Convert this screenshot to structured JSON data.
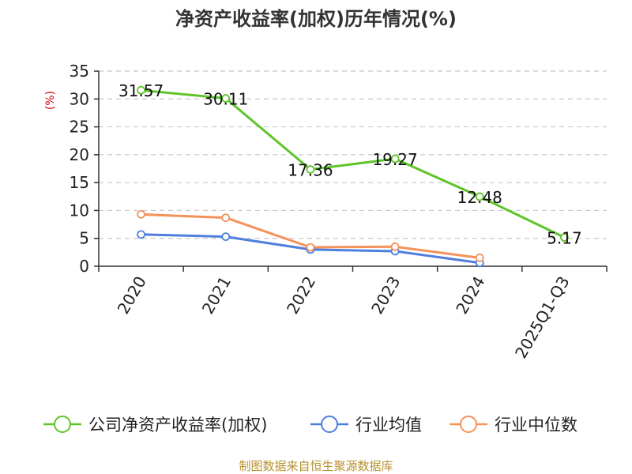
{
  "chart_data": {
    "type": "line",
    "title": "净资产收益率(加权)历年情况(%)",
    "ylabel": "(%)",
    "categories": [
      "2020",
      "2021",
      "2022",
      "2023",
      "2024",
      "2025Q1-Q3"
    ],
    "ylim": [
      0,
      35
    ],
    "yticks": [
      "0",
      "5",
      "10",
      "15",
      "20",
      "25",
      "30",
      "35"
    ],
    "grid": true,
    "legend_position": "bottom",
    "series": [
      {
        "name": "公司净资产收益率(加权)",
        "color": "#5fc42a",
        "values": [
          31.57,
          30.11,
          17.36,
          19.27,
          12.48,
          5.17
        ],
        "labels": [
          "31.57",
          "30.11",
          "17.36",
          "19.27",
          "12.48",
          "5.17"
        ]
      },
      {
        "name": "行业均值",
        "color": "#4f7fdc",
        "values": [
          5.7,
          5.3,
          3.0,
          2.7,
          0.6,
          null
        ],
        "labels": []
      },
      {
        "name": "行业中位数",
        "color": "#f4925a",
        "values": [
          9.3,
          8.7,
          3.4,
          3.5,
          1.5,
          null
        ],
        "labels": []
      }
    ]
  },
  "source_text": "制图数据来自恒生聚源数据库"
}
